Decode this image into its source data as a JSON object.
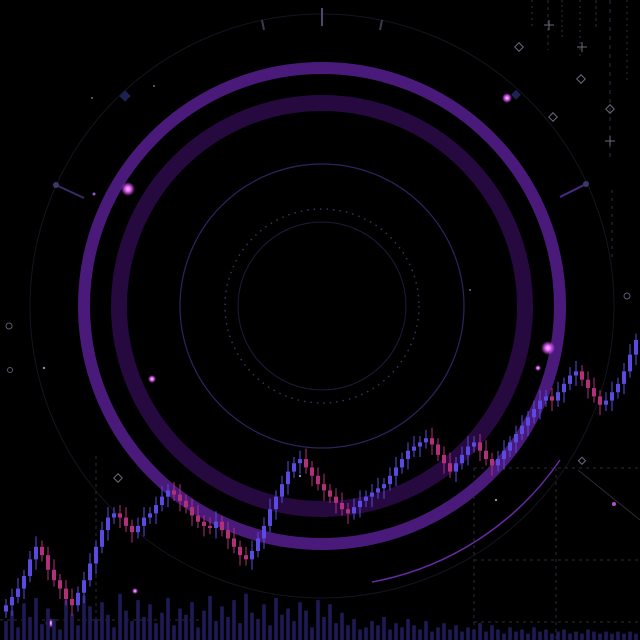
{
  "colors": {
    "background": "#000000",
    "ring_outer": "#4a1a7a",
    "ring_mid": "#2a0c48",
    "ring_thin": "#2c2460",
    "ring_dotted": "#3a3560",
    "glow": "#e05cff",
    "candle_up": "#5a4adf",
    "candle_down": "#b0307a",
    "volume": "#1e1a55",
    "grid": "#2a2a3a",
    "accent_line": "#6a2aa8"
  },
  "icons": [
    "diamond-icon",
    "sparkle-icon",
    "circle-icon",
    "glow-dot-icon"
  ],
  "chart_data": {
    "type": "candlestick",
    "title": "",
    "xlabel": "",
    "ylabel": "",
    "grid": false,
    "legend": "none",
    "ylim": [
      0,
      100
    ],
    "closes": [
      8,
      12,
      16,
      22,
      30,
      36,
      32,
      25,
      20,
      16,
      11,
      8,
      14,
      20,
      28,
      36,
      44,
      50,
      52,
      50,
      46,
      43,
      46,
      50,
      52,
      56,
      60,
      63,
      61,
      58,
      55,
      51,
      48,
      46,
      45,
      48,
      44,
      40,
      36,
      32,
      30,
      34,
      40,
      46,
      54,
      60,
      66,
      72,
      76,
      78,
      74,
      70,
      66,
      63,
      60,
      57,
      54,
      52,
      55,
      58,
      60,
      62,
      64,
      66,
      70,
      74,
      78,
      82,
      84,
      86,
      88,
      85,
      80,
      76,
      72,
      76,
      80,
      84,
      86,
      82,
      78,
      75,
      78,
      82,
      86,
      90,
      94,
      98,
      102,
      106,
      108,
      106,
      110,
      114,
      118,
      120,
      116,
      112,
      108,
      104,
      106,
      110,
      114,
      120,
      128,
      135
    ],
    "volume": [
      18,
      28,
      12,
      35,
      22,
      40,
      15,
      30,
      20,
      10,
      38,
      25,
      14,
      42,
      32,
      20,
      36,
      24,
      12,
      44,
      28,
      18,
      38,
      22,
      34,
      16,
      26,
      40,
      14,
      30,
      24,
      36,
      12,
      28,
      42,
      18,
      32,
      22,
      38,
      16,
      44,
      26,
      20,
      34,
      14,
      40,
      24,
      30,
      18,
      36,
      28,
      12,
      38,
      22,
      34,
      16,
      26,
      14,
      20,
      10,
      12,
      18,
      14,
      22,
      10,
      16,
      12,
      20,
      14,
      10,
      18,
      8,
      12,
      16,
      10,
      14,
      8,
      12,
      10,
      16,
      8,
      14,
      10,
      6,
      12,
      8,
      10,
      6,
      12,
      8,
      10,
      6,
      8,
      10,
      6,
      8,
      6,
      10,
      8,
      6,
      8,
      6,
      8,
      6,
      8,
      6
    ]
  }
}
